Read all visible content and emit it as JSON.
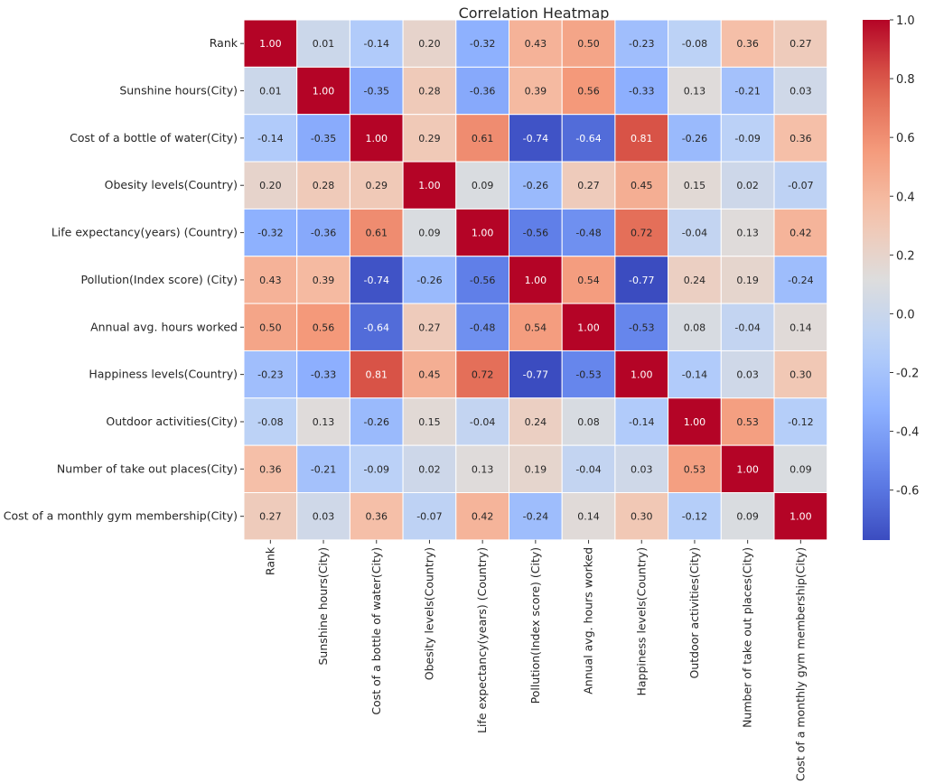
{
  "chart_data": {
    "type": "heatmap",
    "title": "Correlation Heatmap",
    "colormap": "coolwarm",
    "vmin": -0.77,
    "vmax": 1.0,
    "colorbar_ticks": [
      "1.0",
      "0.8",
      "0.6",
      "0.4",
      "0.2",
      "0.0",
      "-0.2",
      "-0.4",
      "-0.6"
    ],
    "labels": [
      "Rank",
      "Sunshine hours(City)",
      "Cost of a bottle of water(City)",
      "Obesity levels(Country)",
      "Life expectancy(years) (Country)",
      "Pollution(Index score) (City)",
      "Annual avg. hours worked",
      "Happiness levels(Country)",
      "Outdoor activities(City)",
      "Number of take out places(City)",
      "Cost of a monthly gym membership(City)"
    ],
    "values": [
      [
        1.0,
        0.01,
        -0.14,
        0.2,
        -0.32,
        0.43,
        0.5,
        -0.23,
        -0.08,
        0.36,
        0.27
      ],
      [
        0.01,
        1.0,
        -0.35,
        0.28,
        -0.36,
        0.39,
        0.56,
        -0.33,
        0.13,
        -0.21,
        0.03
      ],
      [
        -0.14,
        -0.35,
        1.0,
        0.29,
        0.61,
        -0.74,
        -0.64,
        0.81,
        -0.26,
        -0.09,
        0.36
      ],
      [
        0.2,
        0.28,
        0.29,
        1.0,
        0.09,
        -0.26,
        0.27,
        0.45,
        0.15,
        0.02,
        -0.07
      ],
      [
        -0.32,
        -0.36,
        0.61,
        0.09,
        1.0,
        -0.56,
        -0.48,
        0.72,
        -0.04,
        0.13,
        0.42
      ],
      [
        0.43,
        0.39,
        -0.74,
        -0.26,
        -0.56,
        1.0,
        0.54,
        -0.77,
        0.24,
        0.19,
        -0.24
      ],
      [
        0.5,
        0.56,
        -0.64,
        0.27,
        -0.48,
        0.54,
        1.0,
        -0.53,
        0.08,
        -0.04,
        0.14
      ],
      [
        -0.23,
        -0.33,
        0.81,
        0.45,
        0.72,
        -0.77,
        -0.53,
        1.0,
        -0.14,
        0.03,
        0.3
      ],
      [
        -0.08,
        0.13,
        -0.26,
        0.15,
        -0.04,
        0.24,
        0.08,
        -0.14,
        1.0,
        0.53,
        -0.12
      ],
      [
        0.36,
        -0.21,
        -0.09,
        0.02,
        0.13,
        0.19,
        -0.04,
        0.03,
        0.53,
        1.0,
        0.09
      ],
      [
        0.27,
        0.03,
        0.36,
        -0.07,
        0.42,
        -0.24,
        0.14,
        0.3,
        -0.12,
        0.09,
        1.0
      ]
    ],
    "annotation_format": "0.00"
  }
}
